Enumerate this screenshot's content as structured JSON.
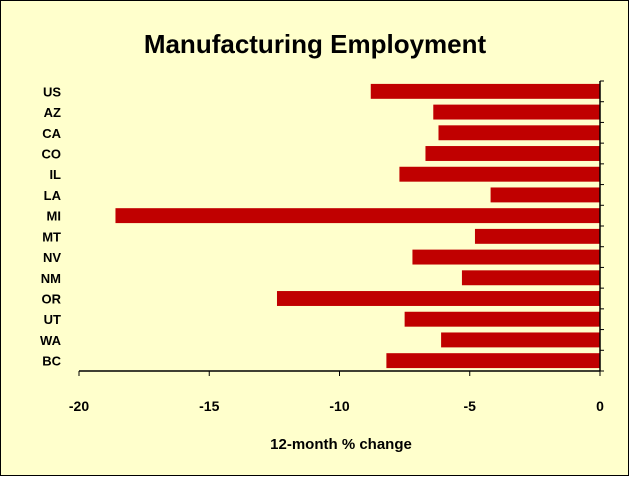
{
  "chart_data": {
    "type": "bar",
    "orientation": "horizontal",
    "title": "Manufacturing Employment",
    "xlabel": "12-month % change",
    "ylabel": "",
    "categories": [
      "US",
      "AZ",
      "CA",
      "CO",
      "IL",
      "LA",
      "MI",
      "MT",
      "NV",
      "NM",
      "OR",
      "UT",
      "WA",
      "BC"
    ],
    "values": [
      -8.8,
      -6.4,
      -6.2,
      -6.7,
      -7.7,
      -4.2,
      -18.6,
      -4.8,
      -7.2,
      -5.3,
      -12.4,
      -7.5,
      -6.1,
      -8.2
    ],
    "xlim": [
      -20,
      0
    ],
    "xticks": [
      "-20",
      "-15",
      "-10",
      "-5",
      "0"
    ],
    "grid": false,
    "legend": "none",
    "bar_color": "#c00000",
    "background_color": "#ffffcc"
  }
}
